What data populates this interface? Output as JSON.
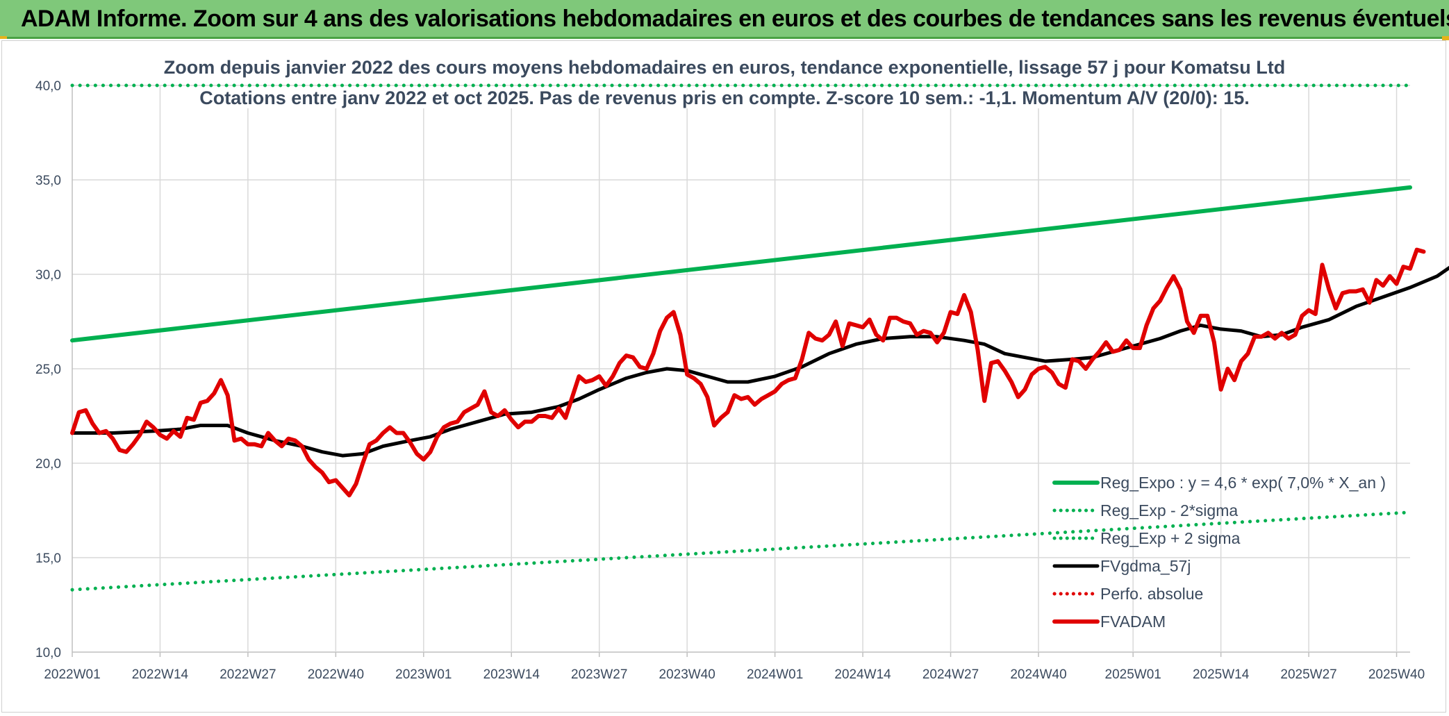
{
  "banner": {
    "title": "ADAM Informe. Zoom sur 4 ans des valorisations hebdomadaires en euros et des courbes de tendances sans les revenus éventuels"
  },
  "chart_data": {
    "type": "line",
    "title": "Zoom depuis janvier 2022 des cours moyens hebdomadaires en euros, tendance exponentielle, lissage 57 j pour Komatsu Ltd",
    "subtitle": "Cotations entre janv 2022 et oct 2025. Pas de revenus pris en compte. Z-score 10 sem.: -1,1. Momentum A/V (20/0): 15.",
    "ylim": [
      10,
      40
    ],
    "y_ticks": [
      "10,0",
      "15,0",
      "20,0",
      "25,0",
      "30,0",
      "35,0",
      "40,0"
    ],
    "x_range_weeks": [
      0,
      198
    ],
    "x_ticks": [
      {
        "label": "2022W01",
        "week": 0
      },
      {
        "label": "2022W14",
        "week": 13
      },
      {
        "label": "2022W27",
        "week": 26
      },
      {
        "label": "2022W40",
        "week": 39
      },
      {
        "label": "2023W01",
        "week": 52
      },
      {
        "label": "2023W14",
        "week": 65
      },
      {
        "label": "2023W27",
        "week": 78
      },
      {
        "label": "2023W40",
        "week": 91
      },
      {
        "label": "2024W01",
        "week": 104
      },
      {
        "label": "2024W14",
        "week": 117
      },
      {
        "label": "2024W27",
        "week": 130
      },
      {
        "label": "2024W40",
        "week": 143
      },
      {
        "label": "2025W01",
        "week": 157
      },
      {
        "label": "2025W14",
        "week": 170
      },
      {
        "label": "2025W27",
        "week": 183
      },
      {
        "label": "2025W40",
        "week": 196
      }
    ],
    "series": [
      {
        "name": "Reg_Expo : y = 4,6 * exp( 7,0% *  X_an )",
        "color": "#00b050",
        "style": "solid",
        "points": [
          [
            0,
            26.5
          ],
          [
            198,
            34.6
          ]
        ]
      },
      {
        "name": "Reg_Exp - 2*sigma",
        "color": "#00b050",
        "style": "dotted",
        "points": [
          [
            0,
            13.3
          ],
          [
            198,
            17.4
          ]
        ]
      },
      {
        "name": "Reg_Exp + 2 sigma",
        "color": "#00b050",
        "style": "dotted",
        "points": [
          [
            0,
            40.0
          ],
          [
            198,
            40.0
          ]
        ]
      },
      {
        "name": "FVgdma_57j",
        "color": "#000000",
        "style": "solid",
        "points": [
          [
            0,
            21.6
          ],
          [
            6,
            21.6
          ],
          [
            12,
            21.7
          ],
          [
            16,
            21.8
          ],
          [
            19,
            22.0
          ],
          [
            23,
            22.0
          ],
          [
            26,
            21.6
          ],
          [
            30,
            21.2
          ],
          [
            34,
            20.9
          ],
          [
            37,
            20.6
          ],
          [
            40,
            20.4
          ],
          [
            43,
            20.5
          ],
          [
            46,
            20.9
          ],
          [
            50,
            21.2
          ],
          [
            53,
            21.4
          ],
          [
            56,
            21.8
          ],
          [
            60,
            22.2
          ],
          [
            64,
            22.6
          ],
          [
            68,
            22.7
          ],
          [
            72,
            23.0
          ],
          [
            75,
            23.4
          ],
          [
            78,
            23.9
          ],
          [
            82,
            24.5
          ],
          [
            85,
            24.8
          ],
          [
            88,
            25.0
          ],
          [
            91,
            24.9
          ],
          [
            94,
            24.6
          ],
          [
            97,
            24.3
          ],
          [
            100,
            24.3
          ],
          [
            104,
            24.6
          ],
          [
            108,
            25.1
          ],
          [
            112,
            25.8
          ],
          [
            116,
            26.3
          ],
          [
            120,
            26.6
          ],
          [
            124,
            26.7
          ],
          [
            128,
            26.7
          ],
          [
            132,
            26.5
          ],
          [
            135,
            26.3
          ],
          [
            138,
            25.8
          ],
          [
            141,
            25.6
          ],
          [
            144,
            25.4
          ],
          [
            148,
            25.5
          ],
          [
            151,
            25.6
          ],
          [
            154,
            25.9
          ],
          [
            158,
            26.3
          ],
          [
            161,
            26.6
          ],
          [
            164,
            27.0
          ],
          [
            167,
            27.3
          ],
          [
            170,
            27.1
          ],
          [
            173,
            27.0
          ],
          [
            176,
            26.7
          ],
          [
            179,
            26.8
          ],
          [
            182,
            27.2
          ],
          [
            186,
            27.6
          ],
          [
            190,
            28.3
          ],
          [
            194,
            28.8
          ],
          [
            198,
            29.3
          ],
          [
            202,
            29.9
          ],
          [
            204,
            30.4
          ]
        ]
      },
      {
        "name": "Perfo. absolue",
        "color": "#e00000",
        "style": "dotted",
        "points": []
      },
      {
        "name": "FVADAM",
        "color": "#e00000",
        "style": "solid",
        "points": [
          [
            0,
            21.6
          ],
          [
            1,
            22.7
          ],
          [
            2,
            22.8
          ],
          [
            3,
            22.1
          ],
          [
            4,
            21.6
          ],
          [
            5,
            21.7
          ],
          [
            6,
            21.3
          ],
          [
            7,
            20.7
          ],
          [
            8,
            20.6
          ],
          [
            9,
            21.0
          ],
          [
            10,
            21.5
          ],
          [
            11,
            22.2
          ],
          [
            12,
            21.9
          ],
          [
            13,
            21.5
          ],
          [
            14,
            21.3
          ],
          [
            15,
            21.7
          ],
          [
            16,
            21.4
          ],
          [
            17,
            22.4
          ],
          [
            18,
            22.3
          ],
          [
            19,
            23.2
          ],
          [
            20,
            23.3
          ],
          [
            21,
            23.7
          ],
          [
            22,
            24.4
          ],
          [
            23,
            23.6
          ],
          [
            24,
            21.2
          ],
          [
            25,
            21.3
          ],
          [
            26,
            21.0
          ],
          [
            27,
            21.0
          ],
          [
            28,
            20.9
          ],
          [
            29,
            21.6
          ],
          [
            30,
            21.2
          ],
          [
            31,
            20.9
          ],
          [
            32,
            21.3
          ],
          [
            33,
            21.2
          ],
          [
            34,
            20.9
          ],
          [
            35,
            20.2
          ],
          [
            36,
            19.8
          ],
          [
            37,
            19.5
          ],
          [
            38,
            19.0
          ],
          [
            39,
            19.1
          ],
          [
            40,
            18.7
          ],
          [
            41,
            18.3
          ],
          [
            42,
            18.9
          ],
          [
            43,
            20.0
          ],
          [
            44,
            21.0
          ],
          [
            45,
            21.2
          ],
          [
            46,
            21.6
          ],
          [
            47,
            21.9
          ],
          [
            48,
            21.6
          ],
          [
            49,
            21.6
          ],
          [
            50,
            21.1
          ],
          [
            51,
            20.5
          ],
          [
            52,
            20.2
          ],
          [
            53,
            20.6
          ],
          [
            54,
            21.4
          ],
          [
            55,
            21.9
          ],
          [
            56,
            22.1
          ],
          [
            57,
            22.2
          ],
          [
            58,
            22.7
          ],
          [
            59,
            22.9
          ],
          [
            60,
            23.1
          ],
          [
            61,
            23.8
          ],
          [
            62,
            22.7
          ],
          [
            63,
            22.5
          ],
          [
            64,
            22.8
          ],
          [
            65,
            22.3
          ],
          [
            66,
            21.9
          ],
          [
            67,
            22.2
          ],
          [
            68,
            22.2
          ],
          [
            69,
            22.5
          ],
          [
            70,
            22.5
          ],
          [
            71,
            22.4
          ],
          [
            72,
            22.9
          ],
          [
            73,
            22.4
          ],
          [
            74,
            23.5
          ],
          [
            75,
            24.6
          ],
          [
            76,
            24.3
          ],
          [
            77,
            24.4
          ],
          [
            78,
            24.6
          ],
          [
            79,
            24.1
          ],
          [
            80,
            24.6
          ],
          [
            81,
            25.3
          ],
          [
            82,
            25.7
          ],
          [
            83,
            25.6
          ],
          [
            84,
            25.1
          ],
          [
            85,
            25.0
          ],
          [
            86,
            25.8
          ],
          [
            87,
            27.0
          ],
          [
            88,
            27.7
          ],
          [
            89,
            28.0
          ],
          [
            90,
            26.8
          ],
          [
            91,
            24.7
          ],
          [
            92,
            24.5
          ],
          [
            93,
            24.2
          ],
          [
            94,
            23.5
          ],
          [
            95,
            22.0
          ],
          [
            96,
            22.4
          ],
          [
            97,
            22.7
          ],
          [
            98,
            23.6
          ],
          [
            99,
            23.4
          ],
          [
            100,
            23.5
          ],
          [
            101,
            23.1
          ],
          [
            102,
            23.4
          ],
          [
            103,
            23.6
          ],
          [
            104,
            23.8
          ],
          [
            105,
            24.2
          ],
          [
            106,
            24.4
          ],
          [
            107,
            24.5
          ],
          [
            108,
            25.5
          ],
          [
            109,
            26.9
          ],
          [
            110,
            26.6
          ],
          [
            111,
            26.5
          ],
          [
            112,
            26.8
          ],
          [
            113,
            27.5
          ],
          [
            114,
            26.2
          ],
          [
            115,
            27.4
          ],
          [
            116,
            27.3
          ],
          [
            117,
            27.2
          ],
          [
            118,
            27.6
          ],
          [
            119,
            26.8
          ],
          [
            120,
            26.5
          ],
          [
            121,
            27.7
          ],
          [
            122,
            27.7
          ],
          [
            123,
            27.5
          ],
          [
            124,
            27.4
          ],
          [
            125,
            26.8
          ],
          [
            126,
            27.0
          ],
          [
            127,
            26.9
          ],
          [
            128,
            26.4
          ],
          [
            129,
            26.9
          ],
          [
            130,
            28.0
          ],
          [
            131,
            27.9
          ],
          [
            132,
            28.9
          ],
          [
            133,
            28.0
          ],
          [
            134,
            26.0
          ],
          [
            135,
            23.3
          ],
          [
            136,
            25.3
          ],
          [
            137,
            25.4
          ],
          [
            138,
            24.9
          ],
          [
            139,
            24.3
          ],
          [
            140,
            23.5
          ],
          [
            141,
            23.9
          ],
          [
            142,
            24.7
          ],
          [
            143,
            25.0
          ],
          [
            144,
            25.1
          ],
          [
            145,
            24.8
          ],
          [
            146,
            24.2
          ],
          [
            147,
            24.0
          ],
          [
            148,
            25.5
          ],
          [
            149,
            25.4
          ],
          [
            150,
            25.0
          ],
          [
            151,
            25.5
          ],
          [
            152,
            25.9
          ],
          [
            153,
            26.4
          ],
          [
            154,
            25.9
          ],
          [
            155,
            26.0
          ],
          [
            156,
            26.5
          ],
          [
            157,
            26.1
          ],
          [
            158,
            26.1
          ],
          [
            159,
            27.3
          ],
          [
            160,
            28.2
          ],
          [
            161,
            28.6
          ],
          [
            162,
            29.3
          ],
          [
            163,
            29.9
          ],
          [
            164,
            29.2
          ],
          [
            165,
            27.5
          ],
          [
            166,
            26.9
          ],
          [
            167,
            27.8
          ],
          [
            168,
            27.8
          ],
          [
            169,
            26.4
          ],
          [
            170,
            23.9
          ],
          [
            171,
            25.0
          ],
          [
            172,
            24.4
          ],
          [
            173,
            25.4
          ],
          [
            174,
            25.8
          ],
          [
            175,
            26.7
          ],
          [
            176,
            26.7
          ],
          [
            177,
            26.9
          ],
          [
            178,
            26.6
          ],
          [
            179,
            26.9
          ],
          [
            180,
            26.6
          ],
          [
            181,
            26.8
          ],
          [
            182,
            27.8
          ],
          [
            183,
            28.1
          ],
          [
            184,
            27.9
          ],
          [
            185,
            30.5
          ],
          [
            186,
            29.2
          ],
          [
            187,
            28.2
          ],
          [
            188,
            29.0
          ],
          [
            189,
            29.1
          ],
          [
            190,
            29.1
          ],
          [
            191,
            29.2
          ],
          [
            192,
            28.5
          ],
          [
            193,
            29.7
          ],
          [
            194,
            29.4
          ],
          [
            195,
            29.9
          ],
          [
            196,
            29.5
          ],
          [
            197,
            30.4
          ],
          [
            198,
            30.3
          ],
          [
            199,
            31.3
          ],
          [
            200,
            31.2
          ]
        ]
      }
    ],
    "legend": {
      "position": "bottom-right"
    }
  }
}
